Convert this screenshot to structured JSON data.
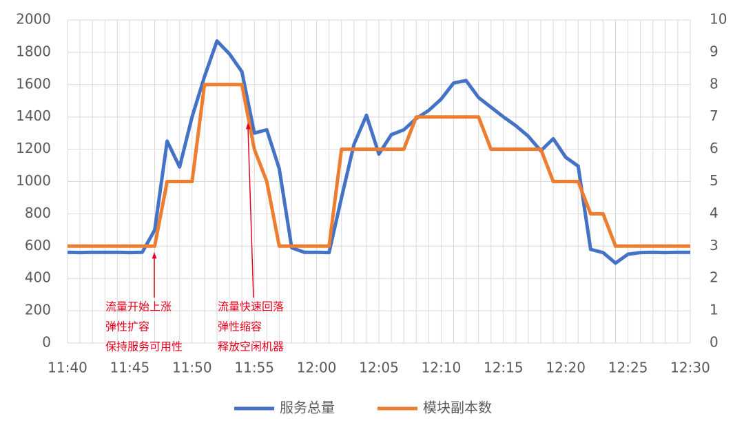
{
  "chart_data": {
    "type": "line",
    "categories": [
      "11:40",
      null,
      null,
      null,
      null,
      "11:45",
      null,
      null,
      null,
      null,
      "11:50",
      null,
      null,
      null,
      null,
      "11:55",
      null,
      null,
      null,
      null,
      "12:00",
      null,
      null,
      null,
      null,
      "12:05",
      null,
      null,
      null,
      null,
      "12:10",
      null,
      null,
      null,
      null,
      "12:15",
      null,
      null,
      null,
      null,
      "12:20",
      null,
      null,
      null,
      null,
      "12:25",
      null,
      null,
      null,
      null,
      "12:30"
    ],
    "series": [
      {
        "name": "服务总量",
        "color": "#4472c4",
        "axis": "y",
        "values": [
          562,
          560,
          562,
          562,
          562,
          560,
          562,
          700,
          1250,
          1090,
          1400,
          1650,
          1870,
          1790,
          1680,
          1300,
          1320,
          1080,
          590,
          562,
          562,
          560,
          900,
          1230,
          1410,
          1170,
          1290,
          1320,
          1390,
          1440,
          1510,
          1610,
          1625,
          1520,
          1460,
          1400,
          1345,
          1280,
          1190,
          1265,
          1150,
          1095,
          580,
          560,
          495,
          550,
          560,
          562,
          560,
          562,
          562
        ]
      },
      {
        "name": "模块副本数",
        "color": "#ed7d31",
        "axis": "y2",
        "values": [
          3,
          3,
          3,
          3,
          3,
          3,
          3,
          3,
          5,
          5,
          5,
          8,
          8,
          8,
          8,
          6,
          5,
          3,
          3,
          3,
          3,
          3,
          6,
          6,
          6,
          6,
          6,
          6,
          7,
          7,
          7,
          7,
          7,
          7,
          6,
          6,
          6,
          6,
          6,
          5,
          5,
          5,
          4,
          4,
          3,
          3,
          3,
          3,
          3,
          3,
          3
        ]
      }
    ],
    "ylim": [
      0,
      2000
    ],
    "yticks": [
      0,
      200,
      400,
      600,
      800,
      1000,
      1200,
      1400,
      1600,
      1800,
      2000
    ],
    "y2lim": [
      0,
      10
    ],
    "y2ticks": [
      0,
      1,
      2,
      3,
      4,
      5,
      6,
      7,
      8,
      9,
      10
    ],
    "grid": true,
    "legend": "bottom",
    "annotations": [
      {
        "lines": [
          "流量开始上涨",
          "弹性扩容",
          "保持服务可用性"
        ],
        "color": "#e8001c"
      },
      {
        "lines": [
          "流量快速回落",
          "弹性缩容",
          "释放空闲机器"
        ],
        "color": "#e8001c"
      }
    ]
  }
}
